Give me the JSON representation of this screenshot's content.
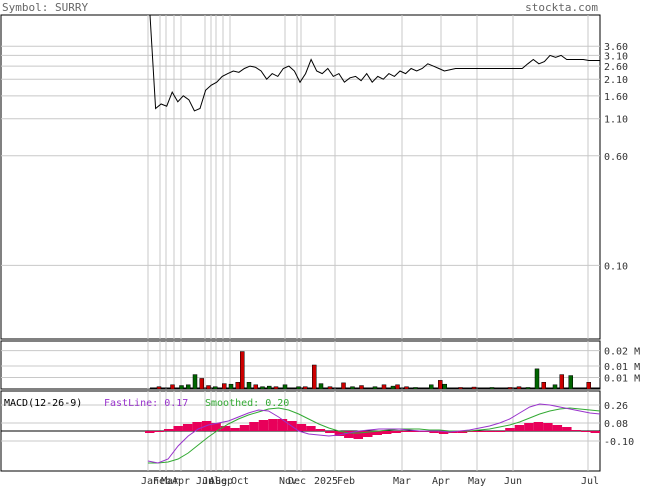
{
  "header": {
    "symbol_text": "Symbol: SURRY",
    "site_text": "stockta.com"
  },
  "colors": {
    "up_volume": "#006400",
    "down_volume": "#cc0000",
    "macd_histogram": "#e8005a",
    "fast_line": "#9933cc",
    "smoothed_line": "#33aa33",
    "price_line": "#000000",
    "grid": "#c8c8c8"
  },
  "chart_data": [
    {
      "type": "line",
      "name": "price-panel",
      "y_scale": "log",
      "ylim": [
        0.03,
        6
      ],
      "y_ticks": [
        "3.60",
        "3.10",
        "2.60",
        "2.10",
        "1.60",
        "1.10",
        "0.60",
        "0.10"
      ],
      "x_ticks": [
        "Jan",
        "Feb",
        "Mar",
        "Apr",
        "Jun",
        "Jul",
        "Aug",
        "Sep",
        "Oct",
        "Nov",
        "Dec",
        "2025",
        "Feb",
        "Mar",
        "Apr",
        "May",
        "Jun",
        "Jul"
      ],
      "series": [
        {
          "values": [
            6,
            1.3,
            1.4,
            1.35,
            1.7,
            1.45,
            1.6,
            1.5,
            1.25,
            1.3,
            1.75,
            1.9,
            2.0,
            2.2,
            2.3,
            2.4,
            2.35,
            2.5,
            2.6,
            2.55,
            2.4,
            2.1,
            2.3,
            2.2,
            2.5,
            2.6,
            2.4,
            2.0,
            2.3,
            2.9,
            2.4,
            2.3,
            2.5,
            2.2,
            2.3,
            2.0,
            2.15,
            2.2,
            2.05,
            2.3,
            2.0,
            2.2,
            2.1,
            2.3,
            2.2,
            2.4,
            2.3,
            2.5,
            2.4,
            2.5,
            2.7,
            2.6,
            2.5,
            2.4,
            2.45,
            2.5,
            2.5,
            2.5,
            2.5,
            2.5,
            2.5,
            2.5,
            2.5,
            2.5,
            2.5,
            2.5,
            2.5,
            2.5,
            2.7,
            2.9,
            2.7,
            2.8,
            3.1,
            3.0,
            3.1,
            2.9,
            2.9,
            2.9,
            2.9,
            2.85,
            2.85,
            2.85
          ]
        }
      ]
    },
    {
      "type": "bar",
      "name": "volume-panel",
      "y_ticks": [
        "0.02 M",
        "0.01 M",
        "0.01 M"
      ],
      "ylim": [
        0,
        0.025
      ],
      "bars": [
        {
          "x": 0.02,
          "v": 0.0012,
          "up": false
        },
        {
          "x": 0.05,
          "v": 0.0022,
          "up": false
        },
        {
          "x": 0.07,
          "v": 0.0018,
          "up": true
        },
        {
          "x": 0.085,
          "v": 0.0022,
          "up": true
        },
        {
          "x": 0.1,
          "v": 0.0075,
          "up": true
        },
        {
          "x": 0.115,
          "v": 0.0055,
          "up": false
        },
        {
          "x": 0.13,
          "v": 0.0018,
          "up": false
        },
        {
          "x": 0.145,
          "v": 0.0012,
          "up": true
        },
        {
          "x": 0.165,
          "v": 0.0028,
          "up": false
        },
        {
          "x": 0.18,
          "v": 0.0025,
          "up": true
        },
        {
          "x": 0.195,
          "v": 0.0035,
          "up": false
        },
        {
          "x": 0.205,
          "v": 0.0195,
          "up": false
        },
        {
          "x": 0.22,
          "v": 0.0035,
          "up": true
        },
        {
          "x": 0.235,
          "v": 0.0022,
          "up": false
        },
        {
          "x": 0.25,
          "v": 0.0012,
          "up": true
        },
        {
          "x": 0.265,
          "v": 0.0015,
          "up": true
        },
        {
          "x": 0.28,
          "v": 0.0012,
          "up": false
        },
        {
          "x": 0.3,
          "v": 0.0022,
          "up": true
        },
        {
          "x": 0.33,
          "v": 0.0012,
          "up": true
        },
        {
          "x": 0.345,
          "v": 0.0012,
          "up": false
        },
        {
          "x": 0.365,
          "v": 0.0125,
          "up": false
        },
        {
          "x": 0.38,
          "v": 0.0028,
          "up": true
        },
        {
          "x": 0.4,
          "v": 0.0012,
          "up": false
        },
        {
          "x": 0.43,
          "v": 0.0032,
          "up": false
        },
        {
          "x": 0.45,
          "v": 0.0012,
          "up": true
        },
        {
          "x": 0.47,
          "v": 0.0018,
          "up": false
        },
        {
          "x": 0.5,
          "v": 0.0012,
          "up": true
        },
        {
          "x": 0.52,
          "v": 0.0022,
          "up": false
        },
        {
          "x": 0.54,
          "v": 0.0015,
          "up": true
        },
        {
          "x": 0.55,
          "v": 0.0022,
          "up": false
        },
        {
          "x": 0.57,
          "v": 0.0012,
          "up": false
        },
        {
          "x": 0.59,
          "v": 0.0008,
          "up": true
        },
        {
          "x": 0.625,
          "v": 0.0022,
          "up": true
        },
        {
          "x": 0.645,
          "v": 0.0045,
          "up": false
        },
        {
          "x": 0.655,
          "v": 0.0025,
          "up": true
        },
        {
          "x": 0.69,
          "v": 0.0008,
          "up": false
        },
        {
          "x": 0.72,
          "v": 0.001,
          "up": false
        },
        {
          "x": 0.76,
          "v": 0.0008,
          "up": true
        },
        {
          "x": 0.8,
          "v": 0.0008,
          "up": false
        },
        {
          "x": 0.82,
          "v": 0.0012,
          "up": false
        },
        {
          "x": 0.84,
          "v": 0.0008,
          "up": true
        },
        {
          "x": 0.86,
          "v": 0.0105,
          "up": true
        },
        {
          "x": 0.875,
          "v": 0.0035,
          "up": false
        },
        {
          "x": 0.9,
          "v": 0.0022,
          "up": true
        },
        {
          "x": 0.915,
          "v": 0.0075,
          "up": false
        },
        {
          "x": 0.935,
          "v": 0.007,
          "up": true
        },
        {
          "x": 0.975,
          "v": 0.0035,
          "up": false
        }
      ]
    },
    {
      "type": "line",
      "name": "macd-panel",
      "title": "MACD(12-26-9)",
      "fastline_label": "FastLine: 0.17",
      "smoothed_label": "Smoothed: 0.20",
      "ylim": [
        -0.4,
        0.4
      ],
      "y_ticks": [
        0.26,
        0.08,
        -0.1
      ],
      "histogram": [
        -0.02,
        0.0,
        0.02,
        0.05,
        0.07,
        0.09,
        0.1,
        0.08,
        0.05,
        0.03,
        0.06,
        0.09,
        0.11,
        0.12,
        0.12,
        0.1,
        0.07,
        0.05,
        0.02,
        -0.02,
        -0.05,
        -0.07,
        -0.08,
        -0.06,
        -0.04,
        -0.03,
        -0.02,
        -0.01,
        0.0,
        -0.01,
        -0.02,
        -0.03,
        -0.02,
        -0.02,
        -0.01,
        -0.01,
        -0.01,
        0.0,
        0.03,
        0.06,
        0.08,
        0.09,
        0.08,
        0.06,
        0.04,
        0.01,
        -0.01,
        -0.02
      ],
      "fast_line": [
        -0.3,
        -0.32,
        -0.28,
        -0.15,
        -0.05,
        0.02,
        0.06,
        0.08,
        0.1,
        0.14,
        0.18,
        0.21,
        0.2,
        0.14,
        0.07,
        0.0,
        -0.03,
        -0.04,
        -0.05,
        -0.04,
        -0.02,
        0.0,
        0.01,
        0.02,
        0.02,
        0.02,
        0.01,
        0.0,
        0.0,
        0.0,
        -0.01,
        0.0,
        0.01,
        0.03,
        0.05,
        0.08,
        0.12,
        0.18,
        0.24,
        0.27,
        0.26,
        0.24,
        0.22,
        0.2,
        0.18,
        0.17
      ],
      "smoothed_line": [
        -0.32,
        -0.32,
        -0.31,
        -0.28,
        -0.22,
        -0.14,
        -0.06,
        0.01,
        0.07,
        0.12,
        0.16,
        0.19,
        0.22,
        0.23,
        0.21,
        0.17,
        0.12,
        0.07,
        0.03,
        0.0,
        -0.02,
        -0.02,
        -0.01,
        0.0,
        0.01,
        0.02,
        0.02,
        0.02,
        0.01,
        0.01,
        0.0,
        0.0,
        0.0,
        0.01,
        0.02,
        0.04,
        0.06,
        0.09,
        0.13,
        0.17,
        0.2,
        0.22,
        0.23,
        0.22,
        0.21,
        0.2
      ]
    }
  ]
}
